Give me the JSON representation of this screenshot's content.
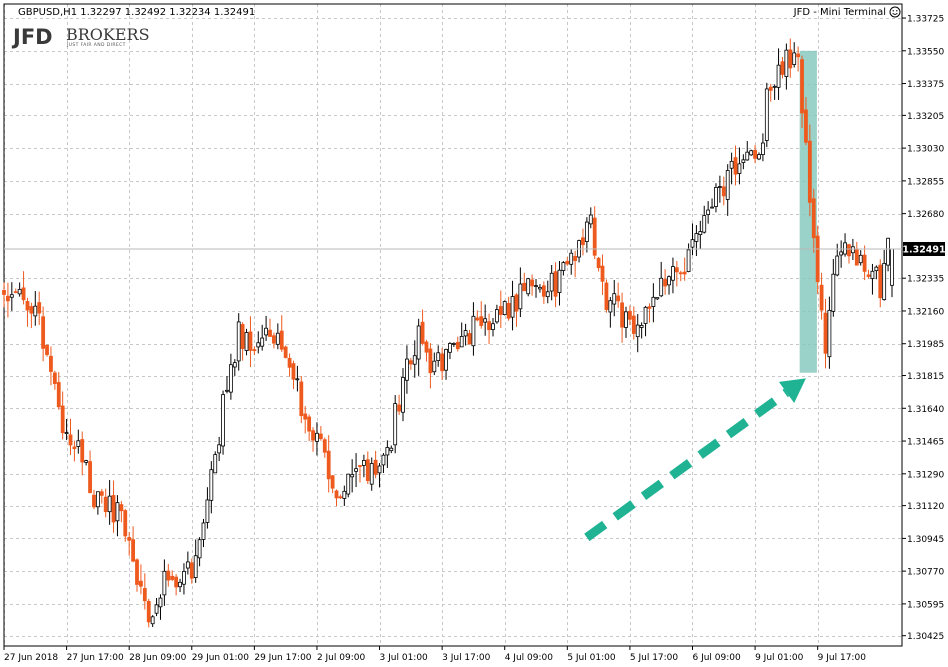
{
  "header": {
    "symbol_info": "GBPUSD,H1  1.32297 1.32492 1.32234 1.32491",
    "terminal_label": "JFD - Mini Terminal",
    "terminal_icon": "smiley-icon"
  },
  "logo": {
    "main": "JFD",
    "brokers": "BROKERS",
    "tagline": "JUST FAIR AND DIRECT"
  },
  "colors": {
    "bull": "#000000",
    "bear": "#ee5a1e",
    "grid": "#c8c8c8",
    "highlight": "#7ec4b8",
    "arrow": "#1fb394",
    "price_tag_bg": "#000000"
  },
  "chart_data": {
    "type": "candlestick",
    "symbol": "GBPUSD",
    "timeframe": "H1",
    "ohlc_header": {
      "open": 1.32297,
      "high": 1.32492,
      "low": 1.32234,
      "close": 1.32491
    },
    "current_price": "1.32491",
    "ylim": [
      1.3037,
      1.338
    ],
    "y_ticks": [
      "1.33725",
      "1.33550",
      "1.33375",
      "1.33205",
      "1.33030",
      "1.32855",
      "1.32680",
      "1.32335",
      "1.32160",
      "1.31985",
      "1.31815",
      "1.31640",
      "1.31465",
      "1.31290",
      "1.31120",
      "1.30945",
      "1.30770",
      "1.30595",
      "1.30425"
    ],
    "x_labels": [
      "27 Jun 2018",
      "27 Jun 17:00",
      "28 Jun 09:00",
      "29 Jun 01:00",
      "29 Jun 17:00",
      "2 Jul 09:00",
      "3 Jul 01:00",
      "3 Jul 17:00",
      "4 Jul 09:00",
      "5 Jul 01:00",
      "5 Jul 17:00",
      "6 Jul 09:00",
      "9 Jul 01:00",
      "9 Jul 17:00"
    ],
    "x_label_index": [
      0,
      16,
      32,
      48,
      64,
      80,
      96,
      112,
      128,
      144,
      160,
      176,
      192,
      208
    ],
    "close_path": [
      [
        0,
        1.3225
      ],
      [
        6,
        1.3222
      ],
      [
        10,
        1.3202
      ],
      [
        14,
        1.316
      ],
      [
        20,
        1.314
      ],
      [
        24,
        1.3112
      ],
      [
        30,
        1.311
      ],
      [
        34,
        1.3075
      ],
      [
        37,
        1.3055
      ],
      [
        40,
        1.307
      ],
      [
        44,
        1.3068
      ],
      [
        48,
        1.308
      ],
      [
        52,
        1.311
      ],
      [
        56,
        1.3165
      ],
      [
        60,
        1.3205
      ],
      [
        64,
        1.32
      ],
      [
        68,
        1.3208
      ],
      [
        72,
        1.3185
      ],
      [
        76,
        1.3168
      ],
      [
        80,
        1.315
      ],
      [
        84,
        1.312
      ],
      [
        87,
        1.3115
      ],
      [
        90,
        1.3135
      ],
      [
        95,
        1.3125
      ],
      [
        98,
        1.314
      ],
      [
        102,
        1.318
      ],
      [
        106,
        1.32
      ],
      [
        110,
        1.3185
      ],
      [
        114,
        1.3195
      ],
      [
        118,
        1.3205
      ],
      [
        122,
        1.321
      ],
      [
        126,
        1.3215
      ],
      [
        130,
        1.322
      ],
      [
        134,
        1.3235
      ],
      [
        138,
        1.323
      ],
      [
        142,
        1.323
      ],
      [
        146,
        1.325
      ],
      [
        150,
        1.326
      ],
      [
        154,
        1.322
      ],
      [
        158,
        1.3215
      ],
      [
        162,
        1.321
      ],
      [
        166,
        1.322
      ],
      [
        170,
        1.3235
      ],
      [
        174,
        1.324
      ],
      [
        178,
        1.3255
      ],
      [
        182,
        1.3275
      ],
      [
        186,
        1.329
      ],
      [
        190,
        1.3295
      ],
      [
        193,
        1.33
      ],
      [
        196,
        1.334
      ],
      [
        200,
        1.335
      ],
      [
        203,
        1.3355
      ],
      [
        205,
        1.33
      ],
      [
        207,
        1.325
      ],
      [
        209,
        1.322
      ],
      [
        210,
        1.3195
      ],
      [
        212,
        1.324
      ],
      [
        216,
        1.3248
      ],
      [
        220,
        1.3245
      ],
      [
        224,
        1.323
      ],
      [
        226,
        1.3249
      ]
    ],
    "highlight_box": {
      "x_from": 203.4,
      "x_to": 207.8,
      "y_from": 1.3183,
      "y_to": 1.3355
    },
    "annotation_arrow": {
      "from": [
        149,
        1.3095
      ],
      "to": [
        205,
        1.318
      ]
    }
  }
}
